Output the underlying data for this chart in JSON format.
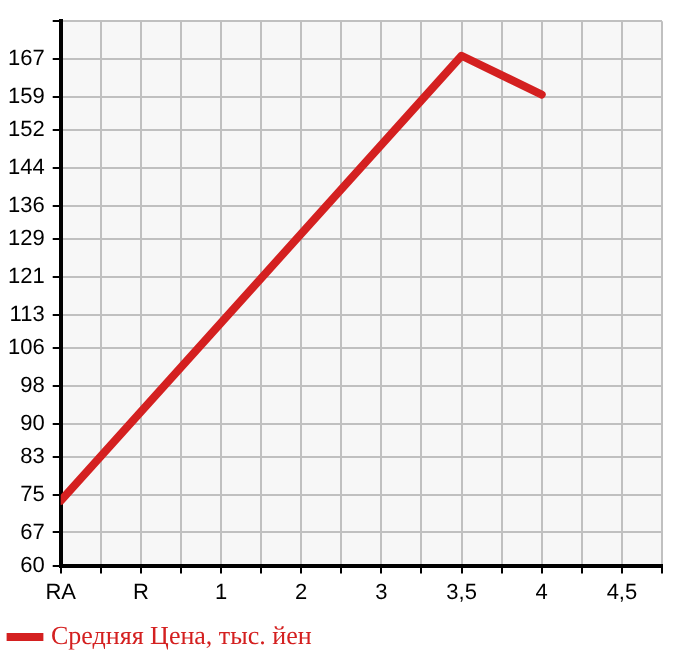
{
  "chart_data": {
    "type": "line",
    "categories": [
      "RA",
      "R",
      "1",
      "2",
      "3",
      "3,5",
      "4",
      "4,5"
    ],
    "series": [
      {
        "name": "Средняя Цена, тыс. йен",
        "color": "#d42020",
        "values": [
          73.7,
          null,
          null,
          null,
          null,
          167.7,
          159.5,
          null
        ]
      }
    ],
    "ylim": [
      60,
      175
    ],
    "yticks": [
      60,
      67,
      75,
      83,
      90,
      98,
      106,
      113,
      121,
      129,
      136,
      144,
      152,
      159,
      167,
      {
        "value": 175,
        "label": null
      }
    ],
    "grid": true,
    "legend": "bottom left",
    "marker": "none",
    "line_style": "solid"
  }
}
